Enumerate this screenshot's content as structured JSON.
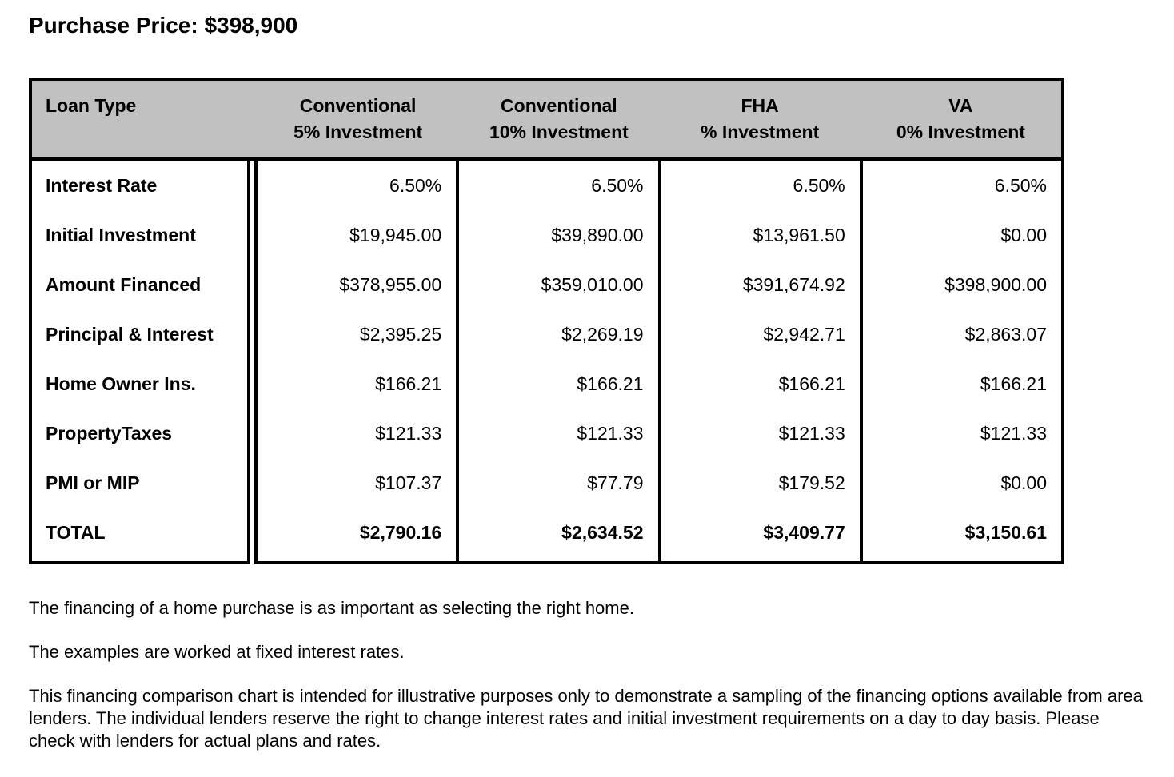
{
  "page": {
    "title": "Purchase Price: $398,900"
  },
  "colors": {
    "header_bg": "#c1c1c1",
    "border": "#000000",
    "background": "#ffffff"
  },
  "table": {
    "header": {
      "loan_type": "Loan Type",
      "columns": [
        {
          "line1": "Conventional",
          "line2": "5% Investment"
        },
        {
          "line1": "Conventional",
          "line2": "10% Investment"
        },
        {
          "line1": "FHA",
          "line2": "% Investment"
        },
        {
          "line1": "VA",
          "line2": "0% Investment"
        }
      ]
    },
    "rows": [
      {
        "label": "Interest Rate",
        "bold": false,
        "values": [
          "6.50%",
          "6.50%",
          "6.50%",
          "6.50%"
        ]
      },
      {
        "label": "Initial Investment",
        "bold": false,
        "values": [
          "$19,945.00",
          "$39,890.00",
          "$13,961.50",
          "$0.00"
        ]
      },
      {
        "label": "Amount Financed",
        "bold": false,
        "values": [
          "$378,955.00",
          "$359,010.00",
          "$391,674.92",
          "$398,900.00"
        ]
      },
      {
        "label": "Principal & Interest",
        "bold": false,
        "values": [
          "$2,395.25",
          "$2,269.19",
          "$2,942.71",
          "$2,863.07"
        ]
      },
      {
        "label": "Home Owner Ins.",
        "bold": false,
        "values": [
          "$166.21",
          "$166.21",
          "$166.21",
          "$166.21"
        ]
      },
      {
        "label": "PropertyTaxes",
        "bold": false,
        "values": [
          "$121.33",
          "$121.33",
          "$121.33",
          "$121.33"
        ]
      },
      {
        "label": "PMI or MIP",
        "bold": false,
        "values": [
          "$107.37",
          "$77.79",
          "$179.52",
          "$0.00"
        ]
      },
      {
        "label": "TOTAL",
        "bold": true,
        "values": [
          "$2,790.16",
          "$2,634.52",
          "$3,409.77",
          "$3,150.61"
        ]
      }
    ]
  },
  "notes": [
    "The financing of a home purchase is as important as selecting the right home.",
    "The examples are worked at fixed interest rates.",
    "This financing comparison chart is intended for illustrative purposes only to demonstrate a sampling of the financing options available from area lenders. The individual lenders reserve the right to change interest rates and initial investment requirements on a day to day basis. Please check with lenders for actual plans and rates."
  ],
  "chart_data": {
    "type": "table",
    "title": "Purchase Price: $398,900",
    "columns": [
      "Loan Type",
      "Conventional 5% Investment",
      "Conventional 10% Investment",
      "FHA % Investment",
      "VA 0% Investment"
    ],
    "rows": [
      [
        "Interest Rate",
        "6.50%",
        "6.50%",
        "6.50%",
        "6.50%"
      ],
      [
        "Initial Investment",
        "$19,945.00",
        "$39,890.00",
        "$13,961.50",
        "$0.00"
      ],
      [
        "Amount Financed",
        "$378,955.00",
        "$359,010.00",
        "$391,674.92",
        "$398,900.00"
      ],
      [
        "Principal & Interest",
        "$2,395.25",
        "$2,269.19",
        "$2,942.71",
        "$2,863.07"
      ],
      [
        "Home Owner Ins.",
        "$166.21",
        "$166.21",
        "$166.21",
        "$166.21"
      ],
      [
        "PropertyTaxes",
        "$121.33",
        "$121.33",
        "$121.33",
        "$121.33"
      ],
      [
        "PMI or MIP",
        "$107.37",
        "$77.79",
        "$179.52",
        "$0.00"
      ],
      [
        "TOTAL",
        "$2,790.16",
        "$2,634.52",
        "$3,409.77",
        "$3,150.61"
      ]
    ]
  }
}
